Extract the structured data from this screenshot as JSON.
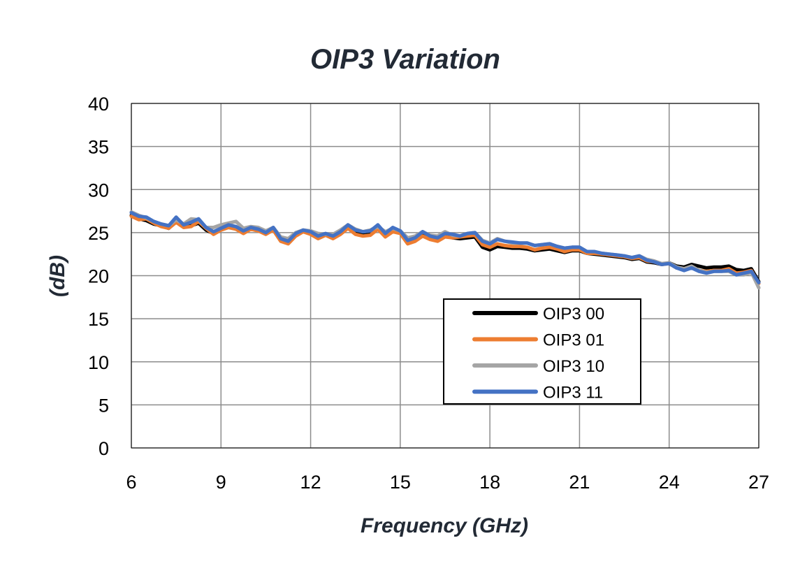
{
  "chart_data": {
    "type": "line",
    "title": "OIP3 Variation",
    "xlabel": "Frequency (GHz)",
    "ylabel": "(dB)",
    "xlim": [
      6,
      27
    ],
    "ylim": [
      0,
      40
    ],
    "xticks": [
      6,
      9,
      12,
      15,
      18,
      21,
      24,
      27
    ],
    "yticks": [
      0,
      5,
      10,
      15,
      20,
      25,
      30,
      35,
      40
    ],
    "grid": true,
    "legend_position": "lower-right",
    "x": [
      6.0,
      6.25,
      6.5,
      6.75,
      7.0,
      7.25,
      7.5,
      7.75,
      8.0,
      8.25,
      8.5,
      8.75,
      9.0,
      9.25,
      9.5,
      9.75,
      10.0,
      10.25,
      10.5,
      10.75,
      11.0,
      11.25,
      11.5,
      11.75,
      12.0,
      12.25,
      12.5,
      12.75,
      13.0,
      13.25,
      13.5,
      13.75,
      14.0,
      14.25,
      14.5,
      14.75,
      15.0,
      15.25,
      15.5,
      15.75,
      16.0,
      16.25,
      16.5,
      16.75,
      17.0,
      17.25,
      17.5,
      17.75,
      18.0,
      18.25,
      18.5,
      18.75,
      19.0,
      19.25,
      19.5,
      19.75,
      20.0,
      20.25,
      20.5,
      20.75,
      21.0,
      21.25,
      21.5,
      21.75,
      22.0,
      22.25,
      22.5,
      22.75,
      23.0,
      23.25,
      23.5,
      23.75,
      24.0,
      24.25,
      24.5,
      24.75,
      25.0,
      25.25,
      25.5,
      25.75,
      26.0,
      26.25,
      26.5,
      26.75,
      27.0
    ],
    "series": [
      {
        "name": "OIP3 00",
        "color": "#000000",
        "values": [
          27.0,
          26.6,
          26.4,
          26.0,
          25.8,
          25.5,
          26.4,
          25.7,
          25.8,
          26.1,
          25.3,
          24.9,
          25.4,
          25.7,
          25.6,
          25.0,
          25.5,
          25.3,
          24.9,
          25.5,
          24.1,
          23.9,
          24.7,
          25.2,
          24.9,
          24.4,
          24.8,
          24.5,
          24.9,
          25.6,
          24.9,
          24.7,
          24.8,
          25.5,
          24.6,
          25.3,
          25.0,
          23.9,
          24.2,
          24.7,
          24.3,
          24.2,
          24.6,
          24.4,
          24.3,
          24.4,
          24.5,
          23.3,
          23.0,
          23.4,
          23.3,
          23.2,
          23.2,
          23.1,
          22.9,
          23.0,
          23.1,
          22.9,
          22.7,
          22.9,
          22.9,
          22.6,
          22.5,
          22.4,
          22.3,
          22.2,
          22.1,
          21.9,
          22.0,
          21.6,
          21.5,
          21.3,
          21.5,
          21.1,
          21.0,
          21.3,
          21.1,
          20.9,
          21.0,
          21.0,
          21.1,
          20.7,
          20.6,
          20.8,
          19.3
        ]
      },
      {
        "name": "OIP3 01",
        "color": "#ED7D31",
        "values": [
          26.9,
          26.5,
          26.6,
          26.1,
          25.7,
          25.5,
          26.2,
          25.6,
          25.7,
          26.3,
          25.5,
          24.8,
          25.3,
          25.6,
          25.4,
          24.9,
          25.4,
          25.2,
          24.8,
          25.3,
          24.0,
          23.7,
          24.6,
          25.1,
          24.8,
          24.3,
          24.7,
          24.3,
          24.8,
          25.5,
          24.8,
          24.6,
          24.7,
          25.4,
          24.5,
          25.1,
          24.9,
          23.7,
          24.0,
          24.6,
          24.2,
          24.0,
          24.5,
          24.4,
          24.5,
          24.6,
          24.7,
          23.6,
          23.3,
          23.7,
          23.5,
          23.4,
          23.4,
          23.3,
          23.0,
          23.2,
          23.3,
          23.1,
          22.8,
          23.0,
          23.0,
          22.6,
          22.6,
          22.5,
          22.4,
          22.3,
          22.2,
          22.0,
          22.1,
          21.7,
          21.6,
          21.3,
          21.4,
          20.9,
          20.8,
          21.0,
          20.6,
          20.5,
          20.6,
          20.6,
          20.8,
          20.3,
          20.4,
          20.6,
          19.1
        ]
      },
      {
        "name": "OIP3 10",
        "color": "#A5A5A5",
        "values": [
          27.4,
          27.0,
          26.7,
          26.3,
          26.0,
          25.8,
          26.5,
          26.0,
          26.6,
          26.5,
          25.6,
          25.6,
          25.9,
          26.1,
          26.3,
          25.5,
          25.7,
          25.6,
          25.2,
          25.6,
          24.5,
          24.3,
          25.0,
          25.3,
          25.2,
          24.9,
          24.8,
          24.8,
          25.3,
          25.9,
          25.4,
          25.1,
          25.3,
          25.7,
          25.1,
          25.5,
          25.2,
          24.4,
          24.6,
          25.1,
          24.7,
          24.6,
          25.1,
          24.7,
          24.6,
          24.9,
          25.0,
          24.1,
          23.8,
          24.3,
          24.0,
          23.8,
          23.8,
          23.8,
          23.5,
          23.6,
          23.7,
          23.4,
          23.2,
          23.3,
          23.3,
          22.8,
          22.8,
          22.6,
          22.5,
          22.4,
          22.3,
          22.1,
          22.3,
          21.9,
          21.7,
          21.4,
          21.5,
          21.0,
          20.8,
          21.1,
          20.6,
          20.4,
          20.5,
          20.5,
          20.5,
          20.1,
          20.1,
          20.4,
          18.6
        ]
      },
      {
        "name": "OIP3 11",
        "color": "#4472C4",
        "values": [
          27.3,
          26.9,
          26.8,
          26.3,
          26.0,
          25.8,
          26.8,
          25.9,
          26.2,
          26.6,
          25.6,
          25.1,
          25.5,
          25.9,
          25.7,
          25.2,
          25.6,
          25.4,
          25.0,
          25.6,
          24.3,
          24.0,
          24.9,
          25.3,
          25.1,
          24.6,
          24.9,
          24.6,
          25.1,
          25.9,
          25.3,
          25.1,
          25.2,
          25.9,
          24.9,
          25.6,
          25.2,
          24.1,
          24.4,
          25.1,
          24.6,
          24.4,
          24.9,
          24.8,
          24.6,
          24.9,
          25.0,
          24.0,
          23.7,
          24.2,
          24.0,
          23.9,
          23.8,
          23.8,
          23.5,
          23.6,
          23.7,
          23.4,
          23.2,
          23.3,
          23.3,
          22.8,
          22.8,
          22.6,
          22.5,
          22.4,
          22.3,
          22.1,
          22.3,
          21.8,
          21.6,
          21.3,
          21.4,
          20.9,
          20.6,
          20.9,
          20.5,
          20.3,
          20.5,
          20.5,
          20.6,
          20.1,
          20.3,
          20.5,
          19.2
        ]
      }
    ]
  }
}
